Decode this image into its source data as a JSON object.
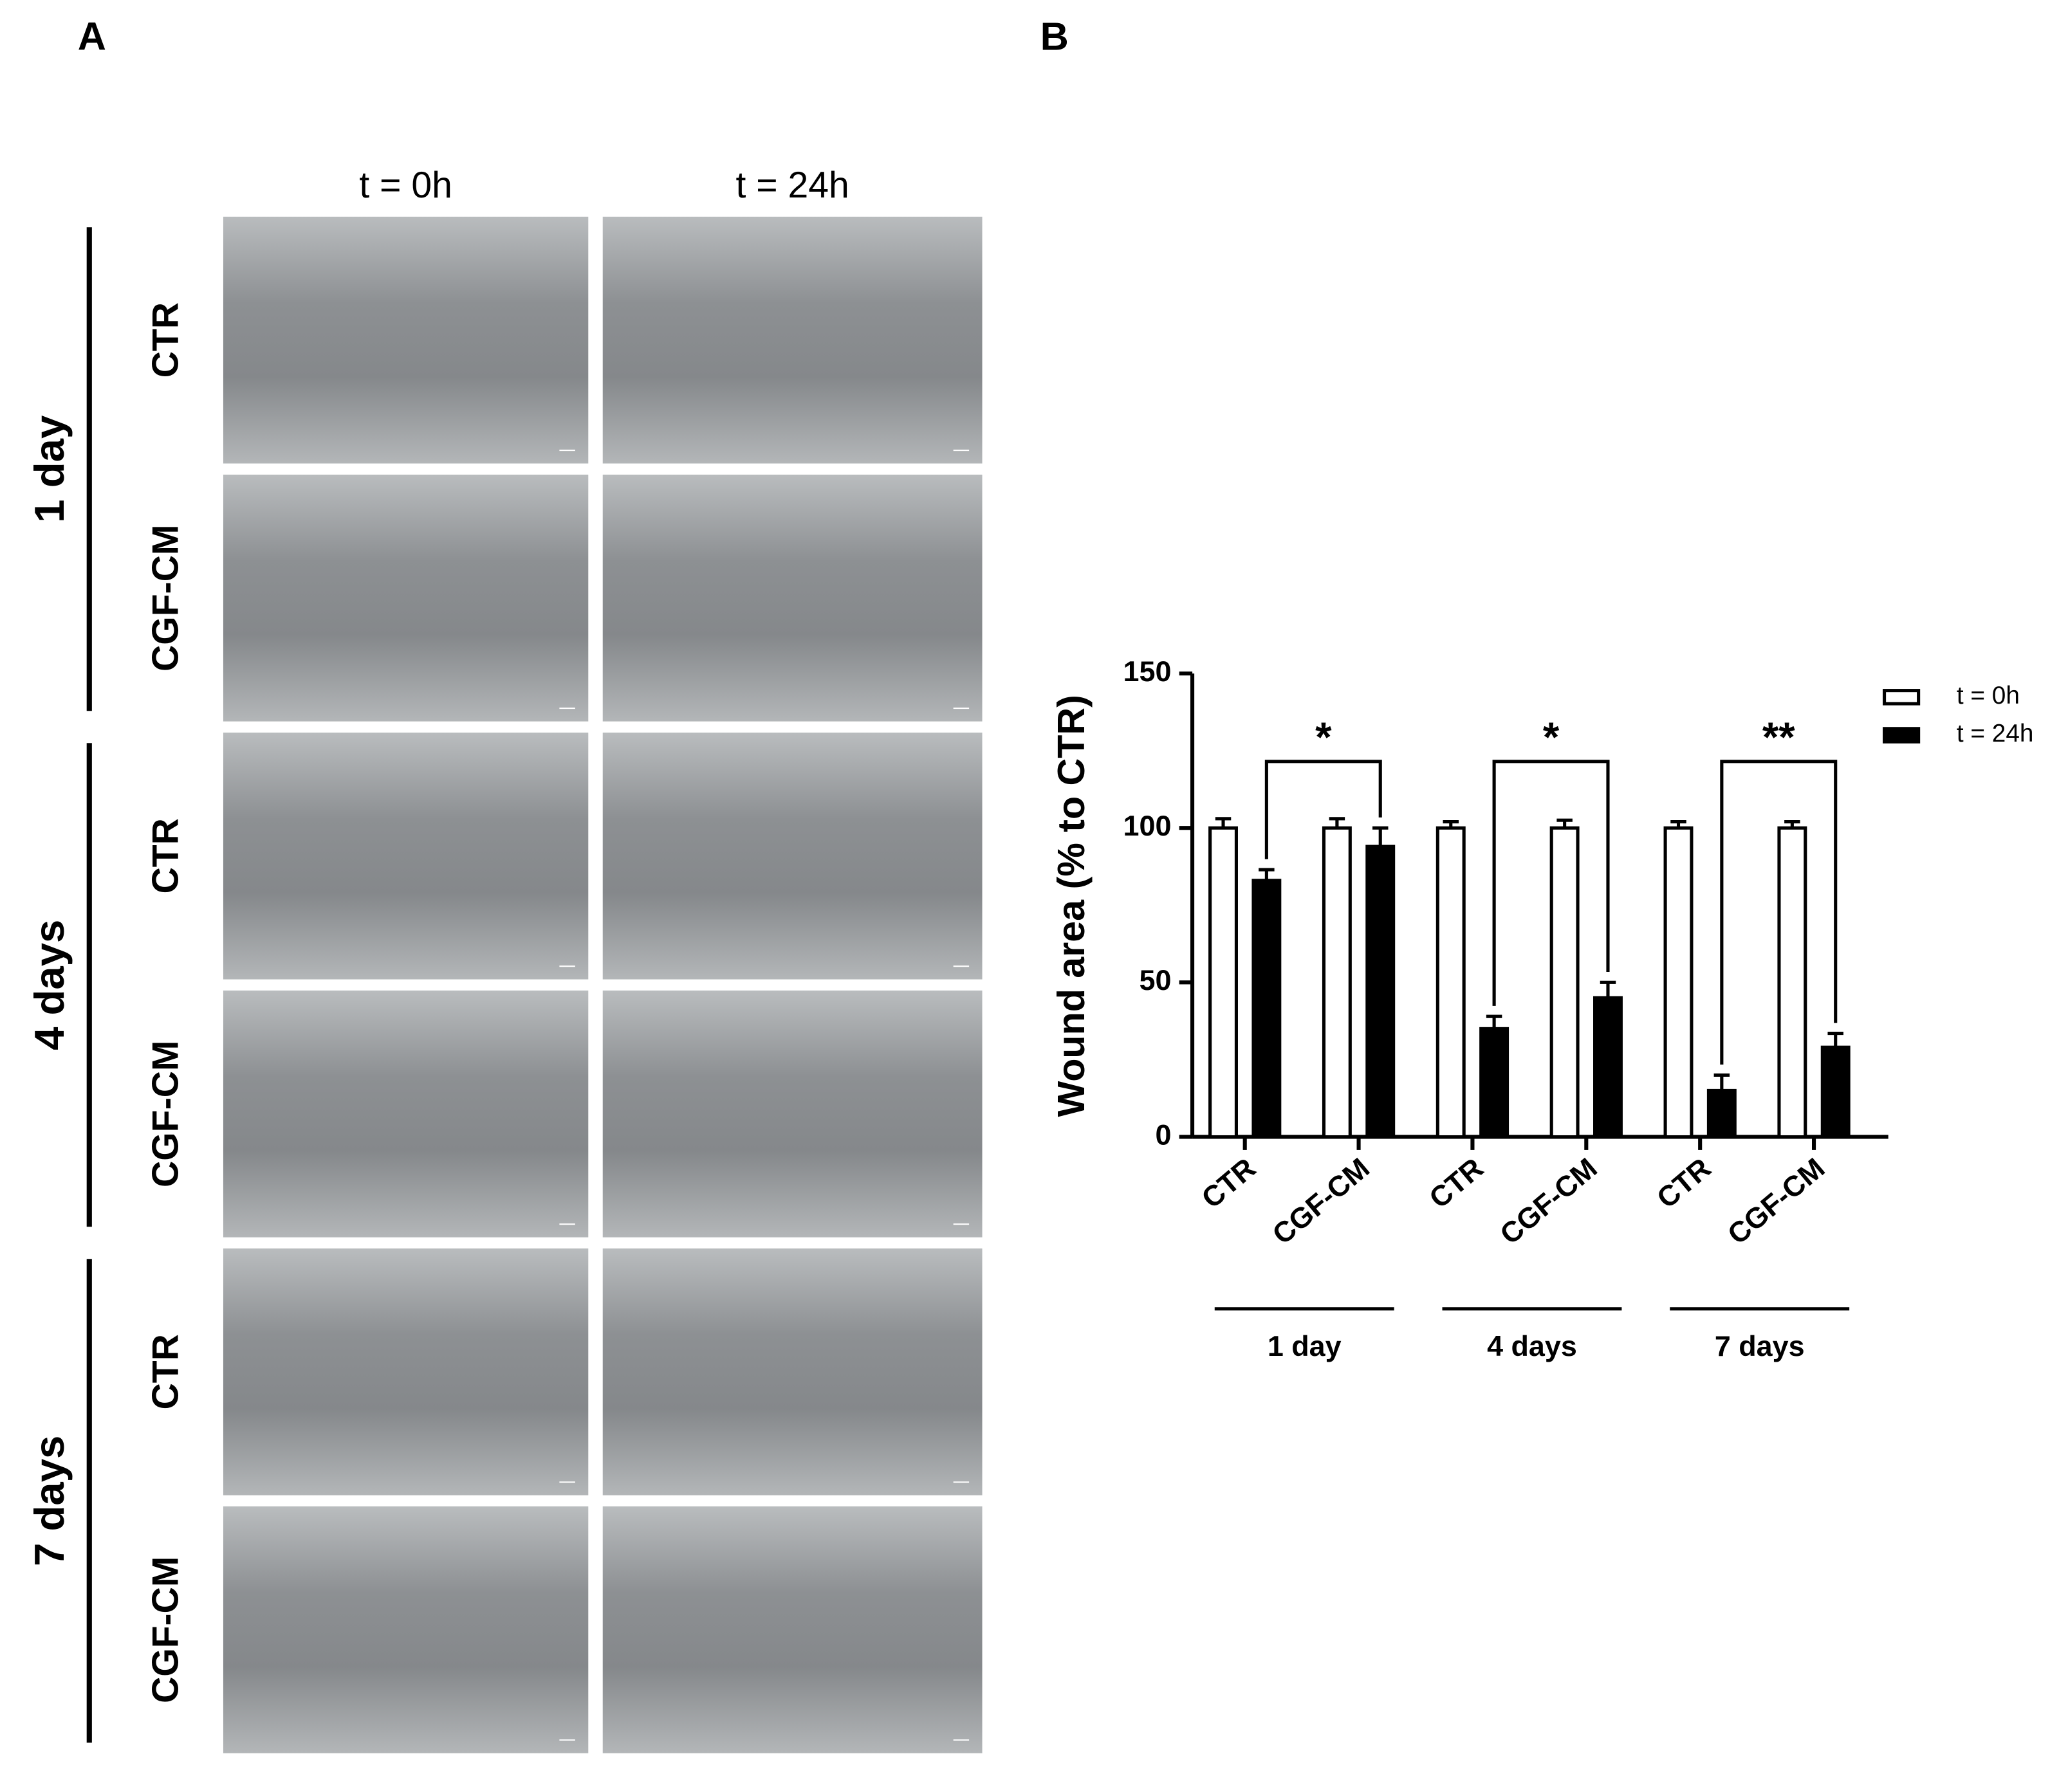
{
  "panel_labels": [
    "A",
    "B"
  ],
  "panel_a": {
    "column_headers": [
      "t = 0h",
      "t = 24h"
    ],
    "groups": [
      {
        "label": "1 day",
        "rows": [
          "CTR",
          "CGF-CM"
        ]
      },
      {
        "label": "4 days",
        "rows": [
          "CTR",
          "CGF-CM"
        ]
      },
      {
        "label": "7 days",
        "rows": [
          "CTR",
          "CGF-CM"
        ]
      }
    ]
  },
  "chart_data": {
    "type": "bar",
    "ylabel": "Wound area (% to CTR)",
    "categories": [
      "CTR",
      "CGF-CM",
      "CTR",
      "CGF-CM",
      "CTR",
      "CGF-CM"
    ],
    "groups": [
      "1 day",
      "4 days",
      "7 days"
    ],
    "series": [
      {
        "name": "t = 0h",
        "color": "#ffffff",
        "values": [
          100,
          100,
          100,
          100,
          100,
          100
        ],
        "errors": [
          3,
          3,
          2,
          2.5,
          2,
          2
        ]
      },
      {
        "name": "t = 24h",
        "color": "#000000",
        "values": [
          83,
          94,
          35,
          45,
          15,
          29
        ],
        "errors": [
          3.5,
          6,
          4,
          5,
          5,
          4.5
        ]
      }
    ],
    "annotations": [
      "*",
      "*",
      "**"
    ],
    "ylim": [
      0,
      150
    ],
    "yticks": [
      0,
      50,
      100,
      150
    ],
    "legend": "top-right"
  }
}
